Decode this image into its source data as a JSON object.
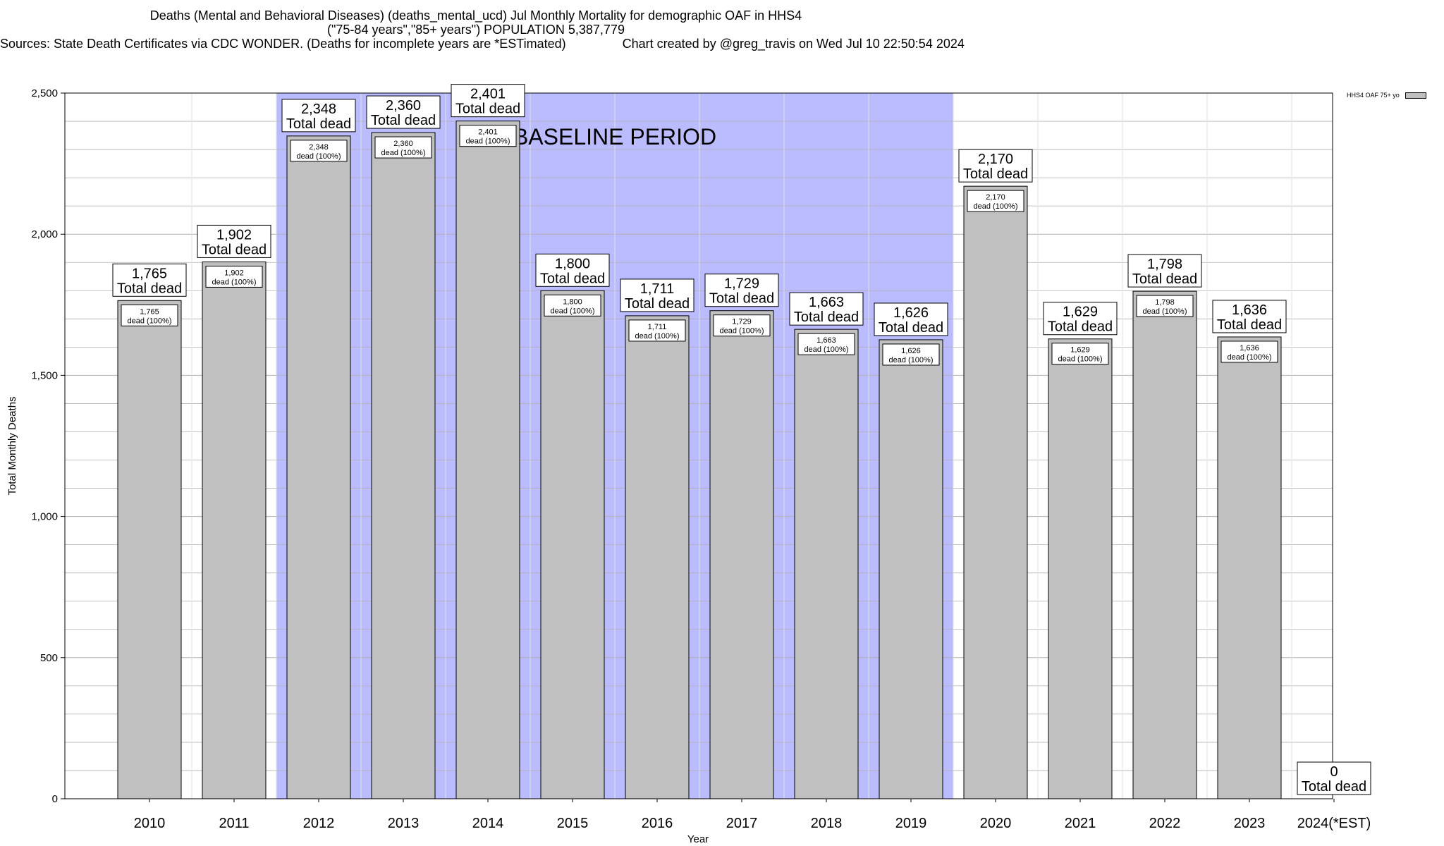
{
  "title": {
    "line1": "Deaths (Mental and Behavioral Diseases) (deaths_mental_ucd) Jul Monthly Mortality for demographic OAF in HHS4",
    "line2": "(\"75-84 years\",\"85+ years\") POPULATION 5,387,779",
    "line3_left": "Sources: State Death Certificates via CDC WONDER. (Deaths for incomplete years are *ESTimated)",
    "line3_right": "Chart created by @greg_travis on Wed Jul 10 22:50:54 2024"
  },
  "legend": {
    "label": "HHS4 OAF 75+ yo",
    "color": "#c0c0c0"
  },
  "colors": {
    "bar": "#c0c0c0",
    "baseline": "#bbbbff",
    "grid": "#b0b0b0"
  },
  "chart_data": {
    "type": "bar",
    "title": "Deaths (Mental and Behavioral Diseases) (deaths_mental_ucd) Jul Monthly Mortality for demographic OAF in HHS4",
    "xlabel": "Year",
    "ylabel": "Total Monthly Deaths",
    "ylim": [
      0,
      2500
    ],
    "yticks": [
      0,
      500,
      1000,
      1500,
      2000,
      2500
    ],
    "ytick_labels": [
      "0",
      "500",
      "1,000",
      "1,500",
      "2,000",
      "2,500"
    ],
    "grid": true,
    "legend_position": "top-right",
    "categories": [
      "2010",
      "2011",
      "2012",
      "2013",
      "2014",
      "2015",
      "2016",
      "2017",
      "2018",
      "2019",
      "2020",
      "2021",
      "2022",
      "2023",
      "2024(*EST)"
    ],
    "series": [
      {
        "name": "HHS4 OAF 75+ yo",
        "values": [
          1765,
          1902,
          2348,
          2360,
          2401,
          1800,
          1711,
          1729,
          1663,
          1626,
          2170,
          1629,
          1798,
          1636,
          0
        ]
      }
    ],
    "value_labels": [
      "1,765",
      "1,902",
      "2,348",
      "2,360",
      "2,401",
      "1,800",
      "1,711",
      "1,729",
      "1,663",
      "1,626",
      "2,170",
      "1,629",
      "1,798",
      "1,636",
      "0"
    ],
    "total_label": "Total dead",
    "inner_label": "dead (100%)",
    "baseline_period": {
      "label": "BASELINE PERIOD",
      "from": "2012",
      "to": "2019"
    }
  }
}
